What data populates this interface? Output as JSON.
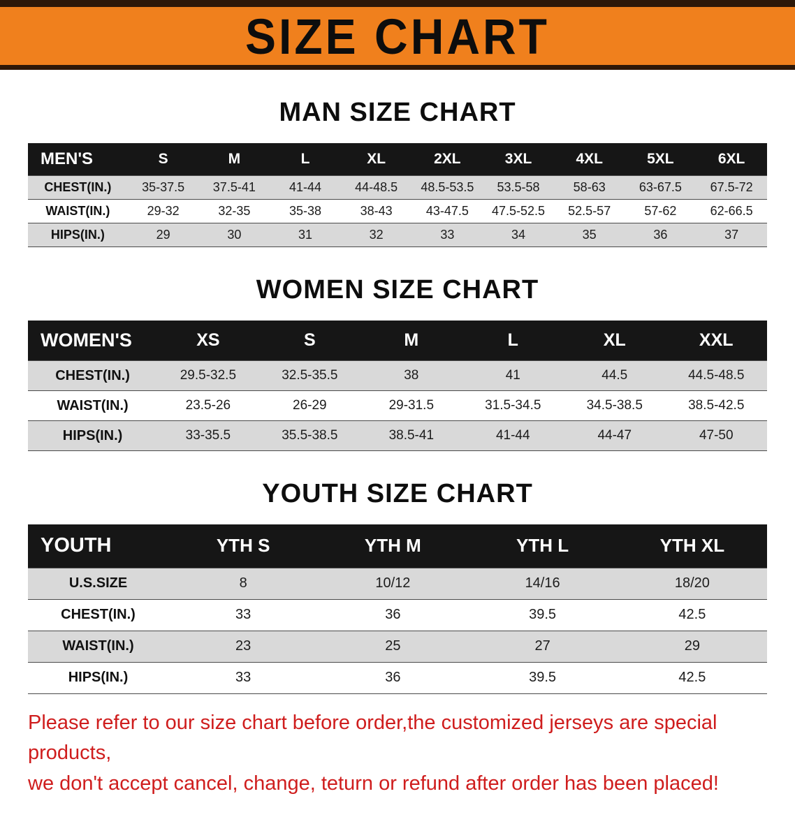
{
  "banner": {
    "title": "SIZE CHART"
  },
  "colors": {
    "banner_orange": "#f0801d",
    "banner_border_brown": "#2e1808",
    "table_header_black": "#161616",
    "row_gray": "#d9d9d9",
    "notice_red": "#cf1d1d"
  },
  "sections": [
    {
      "key": "men",
      "heading": "MAN SIZE CHART",
      "table": {
        "header": [
          "MEN'S",
          "S",
          "M",
          "L",
          "XL",
          "2XL",
          "3XL",
          "4XL",
          "5XL",
          "6XL"
        ],
        "rows": [
          {
            "label": "CHEST(IN.)",
            "values": [
              "35-37.5",
              "37.5-41",
              "41-44",
              "44-48.5",
              "48.5-53.5",
              "53.5-58",
              "58-63",
              "63-67.5",
              "67.5-72"
            ]
          },
          {
            "label": "WAIST(IN.)",
            "values": [
              "29-32",
              "32-35",
              "35-38",
              "38-43",
              "43-47.5",
              "47.5-52.5",
              "52.5-57",
              "57-62",
              "62-66.5"
            ]
          },
          {
            "label": "HIPS(IN.)",
            "values": [
              "29",
              "30",
              "31",
              "32",
              "33",
              "34",
              "35",
              "36",
              "37"
            ]
          }
        ]
      }
    },
    {
      "key": "women",
      "heading": "WOMEN SIZE CHART",
      "table": {
        "header": [
          "WOMEN'S",
          "XS",
          "S",
          "M",
          "L",
          "XL",
          "XXL"
        ],
        "rows": [
          {
            "label": "CHEST(IN.)",
            "values": [
              "29.5-32.5",
              "32.5-35.5",
              "38",
              "41",
              "44.5",
              "44.5-48.5"
            ]
          },
          {
            "label": "WAIST(IN.)",
            "values": [
              "23.5-26",
              "26-29",
              "29-31.5",
              "31.5-34.5",
              "34.5-38.5",
              "38.5-42.5"
            ]
          },
          {
            "label": "HIPS(IN.)",
            "values": [
              "33-35.5",
              "35.5-38.5",
              "38.5-41",
              "41-44",
              "44-47",
              "47-50"
            ]
          }
        ]
      }
    },
    {
      "key": "youth",
      "heading": "YOUTH SIZE CHART",
      "table": {
        "header": [
          "YOUTH",
          "YTH S",
          "YTH M",
          "YTH L",
          "YTH XL"
        ],
        "rows": [
          {
            "label": "U.S.SIZE",
            "values": [
              "8",
              "10/12",
              "14/16",
              "18/20"
            ]
          },
          {
            "label": "CHEST(IN.)",
            "values": [
              "33",
              "36",
              "39.5",
              "42.5"
            ]
          },
          {
            "label": "WAIST(IN.)",
            "values": [
              "23",
              "25",
              "27",
              "29"
            ]
          },
          {
            "label": "HIPS(IN.)",
            "values": [
              "33",
              "36",
              "39.5",
              "42.5"
            ]
          }
        ]
      }
    }
  ],
  "footer": {
    "line1": "Please refer to our size chart before order,the customized jerseys are special products,",
    "line2": "we don't accept cancel, change, teturn or refund after order has been placed!"
  }
}
